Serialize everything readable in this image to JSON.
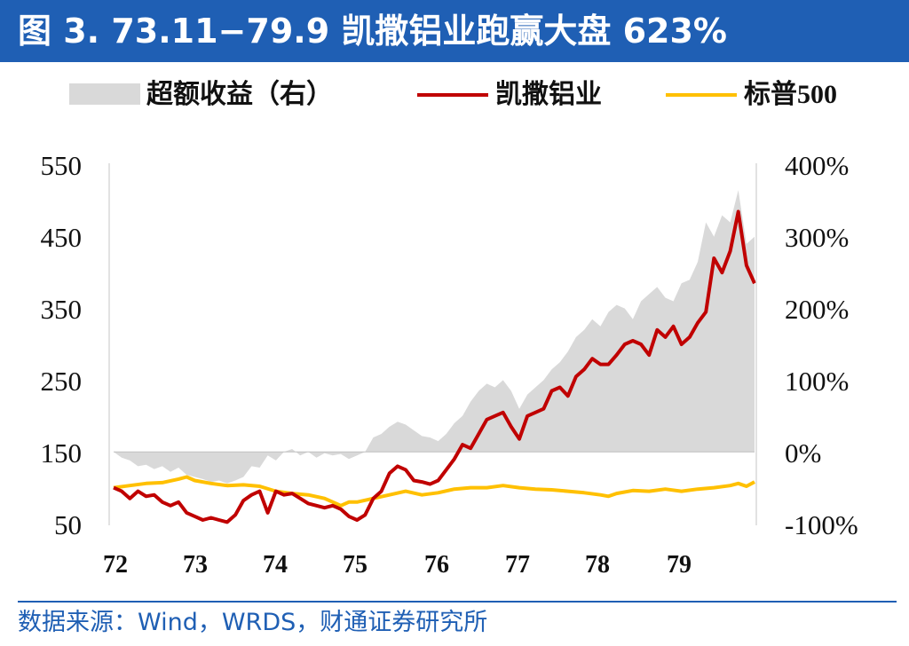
{
  "header": {
    "title": "图 3. 73.11−79.9 凯撒铝业跑赢大盘 623%"
  },
  "source": {
    "text": "数据来源：Wind，WRDS，财通证券研究所"
  },
  "colors": {
    "header_bg": "#1f5fb4",
    "excess": "#d9d9d9",
    "kaiser": "#c00000",
    "sp500": "#ffc000"
  },
  "chart_data": {
    "type": "line",
    "legend_position": "top",
    "grid": false,
    "x_ticks": [
      "72",
      "73",
      "74",
      "75",
      "76",
      "77",
      "78",
      "79"
    ],
    "x_range": [
      1972.0,
      1979.9
    ],
    "y_left": {
      "range": [
        50,
        550
      ],
      "ticks": [
        "50",
        "150",
        "250",
        "350",
        "450",
        "550"
      ]
    },
    "y_right": {
      "range": [
        -100,
        400
      ],
      "ticks": [
        "-100%",
        "0%",
        "100%",
        "200%",
        "300%",
        "400%"
      ]
    },
    "series": [
      {
        "name": "超额收益（右）",
        "type": "area",
        "axis": "right",
        "points": [
          [
            1972.0,
            0
          ],
          [
            1972.1,
            -8
          ],
          [
            1972.2,
            -12
          ],
          [
            1972.3,
            -20
          ],
          [
            1972.4,
            -18
          ],
          [
            1972.5,
            -24
          ],
          [
            1972.6,
            -20
          ],
          [
            1972.7,
            -28
          ],
          [
            1972.8,
            -22
          ],
          [
            1972.9,
            -32
          ],
          [
            1973.0,
            -35
          ],
          [
            1973.1,
            -38
          ],
          [
            1973.2,
            -42
          ],
          [
            1973.3,
            -40
          ],
          [
            1973.4,
            -44
          ],
          [
            1973.5,
            -40
          ],
          [
            1973.6,
            -35
          ],
          [
            1973.7,
            -20
          ],
          [
            1973.8,
            -22
          ],
          [
            1973.9,
            -5
          ],
          [
            1974.0,
            -12
          ],
          [
            1974.1,
            0
          ],
          [
            1974.2,
            4
          ],
          [
            1974.3,
            -5
          ],
          [
            1974.4,
            0
          ],
          [
            1974.5,
            -8
          ],
          [
            1974.6,
            -2
          ],
          [
            1974.7,
            -5
          ],
          [
            1974.8,
            -3
          ],
          [
            1974.9,
            -10
          ],
          [
            1975.0,
            -5
          ],
          [
            1975.1,
            0
          ],
          [
            1975.2,
            20
          ],
          [
            1975.3,
            25
          ],
          [
            1975.4,
            35
          ],
          [
            1975.5,
            42
          ],
          [
            1975.6,
            38
          ],
          [
            1975.7,
            30
          ],
          [
            1975.8,
            22
          ],
          [
            1975.9,
            20
          ],
          [
            1976.0,
            15
          ],
          [
            1976.1,
            25
          ],
          [
            1976.2,
            40
          ],
          [
            1976.3,
            50
          ],
          [
            1976.4,
            70
          ],
          [
            1976.5,
            85
          ],
          [
            1976.6,
            95
          ],
          [
            1976.7,
            90
          ],
          [
            1976.8,
            100
          ],
          [
            1976.9,
            85
          ],
          [
            1977.0,
            60
          ],
          [
            1977.1,
            80
          ],
          [
            1977.2,
            90
          ],
          [
            1977.3,
            100
          ],
          [
            1977.4,
            115
          ],
          [
            1977.5,
            125
          ],
          [
            1977.6,
            140
          ],
          [
            1977.7,
            160
          ],
          [
            1977.8,
            170
          ],
          [
            1977.9,
            185
          ],
          [
            1978.0,
            175
          ],
          [
            1978.1,
            195
          ],
          [
            1978.2,
            205
          ],
          [
            1978.3,
            200
          ],
          [
            1978.4,
            185
          ],
          [
            1978.5,
            210
          ],
          [
            1978.6,
            220
          ],
          [
            1978.7,
            230
          ],
          [
            1978.8,
            215
          ],
          [
            1978.9,
            210
          ],
          [
            1979.0,
            235
          ],
          [
            1979.1,
            240
          ],
          [
            1979.2,
            265
          ],
          [
            1979.3,
            320
          ],
          [
            1979.4,
            300
          ],
          [
            1979.5,
            330
          ],
          [
            1979.6,
            320
          ],
          [
            1979.7,
            365
          ],
          [
            1979.8,
            290
          ],
          [
            1979.9,
            300
          ]
        ]
      },
      {
        "name": "凯撒铝业",
        "type": "line",
        "axis": "left",
        "points": [
          [
            1972.0,
            100
          ],
          [
            1972.1,
            95
          ],
          [
            1972.2,
            85
          ],
          [
            1972.3,
            95
          ],
          [
            1972.4,
            88
          ],
          [
            1972.5,
            90
          ],
          [
            1972.6,
            80
          ],
          [
            1972.7,
            75
          ],
          [
            1972.8,
            80
          ],
          [
            1972.9,
            65
          ],
          [
            1973.0,
            60
          ],
          [
            1973.1,
            55
          ],
          [
            1973.2,
            58
          ],
          [
            1973.3,
            55
          ],
          [
            1973.4,
            52
          ],
          [
            1973.5,
            62
          ],
          [
            1973.6,
            82
          ],
          [
            1973.7,
            90
          ],
          [
            1973.8,
            95
          ],
          [
            1973.9,
            65
          ],
          [
            1974.0,
            95
          ],
          [
            1974.1,
            90
          ],
          [
            1974.2,
            92
          ],
          [
            1974.3,
            85
          ],
          [
            1974.4,
            78
          ],
          [
            1974.5,
            75
          ],
          [
            1974.6,
            72
          ],
          [
            1974.7,
            75
          ],
          [
            1974.8,
            70
          ],
          [
            1974.9,
            60
          ],
          [
            1975.0,
            55
          ],
          [
            1975.1,
            62
          ],
          [
            1975.2,
            85
          ],
          [
            1975.3,
            95
          ],
          [
            1975.4,
            120
          ],
          [
            1975.5,
            130
          ],
          [
            1975.6,
            125
          ],
          [
            1975.7,
            110
          ],
          [
            1975.8,
            108
          ],
          [
            1975.9,
            105
          ],
          [
            1976.0,
            110
          ],
          [
            1976.1,
            125
          ],
          [
            1976.2,
            140
          ],
          [
            1976.3,
            160
          ],
          [
            1976.4,
            155
          ],
          [
            1976.5,
            175
          ],
          [
            1976.6,
            195
          ],
          [
            1976.7,
            200
          ],
          [
            1976.8,
            205
          ],
          [
            1976.9,
            185
          ],
          [
            1977.0,
            168
          ],
          [
            1977.1,
            200
          ],
          [
            1977.2,
            205
          ],
          [
            1977.3,
            210
          ],
          [
            1977.4,
            235
          ],
          [
            1977.5,
            240
          ],
          [
            1977.6,
            228
          ],
          [
            1977.7,
            255
          ],
          [
            1977.8,
            265
          ],
          [
            1977.9,
            280
          ],
          [
            1978.0,
            272
          ],
          [
            1978.1,
            272
          ],
          [
            1978.2,
            285
          ],
          [
            1978.3,
            300
          ],
          [
            1978.4,
            305
          ],
          [
            1978.5,
            300
          ],
          [
            1978.6,
            285
          ],
          [
            1978.7,
            320
          ],
          [
            1978.8,
            310
          ],
          [
            1978.9,
            325
          ],
          [
            1979.0,
            300
          ],
          [
            1979.1,
            310
          ],
          [
            1979.2,
            330
          ],
          [
            1979.3,
            345
          ],
          [
            1979.4,
            420
          ],
          [
            1979.5,
            400
          ],
          [
            1979.6,
            430
          ],
          [
            1979.7,
            485
          ],
          [
            1979.8,
            410
          ],
          [
            1979.9,
            385
          ]
        ]
      },
      {
        "name": "标普500",
        "type": "line",
        "axis": "left",
        "points": [
          [
            1972.0,
            100
          ],
          [
            1972.2,
            103
          ],
          [
            1972.4,
            106
          ],
          [
            1972.6,
            107
          ],
          [
            1972.8,
            112
          ],
          [
            1972.9,
            115
          ],
          [
            1973.0,
            110
          ],
          [
            1973.2,
            106
          ],
          [
            1973.4,
            103
          ],
          [
            1973.6,
            104
          ],
          [
            1973.8,
            102
          ],
          [
            1974.0,
            95
          ],
          [
            1974.2,
            92
          ],
          [
            1974.4,
            90
          ],
          [
            1974.6,
            85
          ],
          [
            1974.8,
            75
          ],
          [
            1974.9,
            80
          ],
          [
            1975.0,
            80
          ],
          [
            1975.2,
            85
          ],
          [
            1975.4,
            90
          ],
          [
            1975.6,
            95
          ],
          [
            1975.8,
            90
          ],
          [
            1976.0,
            93
          ],
          [
            1976.2,
            98
          ],
          [
            1976.4,
            100
          ],
          [
            1976.6,
            100
          ],
          [
            1976.8,
            103
          ],
          [
            1977.0,
            100
          ],
          [
            1977.2,
            98
          ],
          [
            1977.4,
            97
          ],
          [
            1977.6,
            95
          ],
          [
            1977.8,
            93
          ],
          [
            1978.0,
            90
          ],
          [
            1978.1,
            88
          ],
          [
            1978.2,
            92
          ],
          [
            1978.4,
            96
          ],
          [
            1978.6,
            95
          ],
          [
            1978.8,
            98
          ],
          [
            1979.0,
            95
          ],
          [
            1979.2,
            98
          ],
          [
            1979.4,
            100
          ],
          [
            1979.6,
            103
          ],
          [
            1979.7,
            106
          ],
          [
            1979.8,
            102
          ],
          [
            1979.9,
            108
          ]
        ]
      }
    ]
  }
}
